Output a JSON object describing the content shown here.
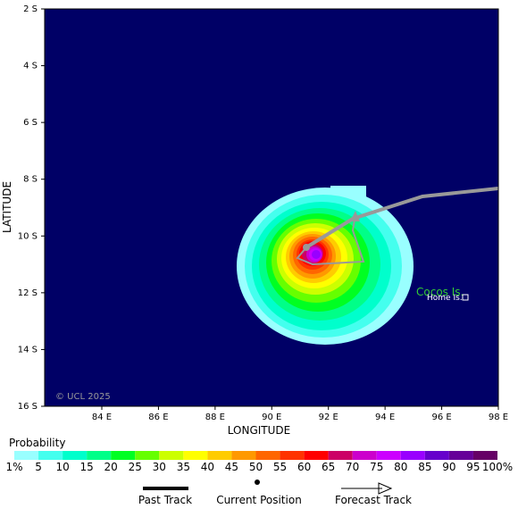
{
  "map": {
    "lat_ticks": [
      "2 S",
      "4 S",
      "6 S",
      "8 S",
      "10 S",
      "12 S",
      "14 S",
      "16 S"
    ],
    "lon_ticks": [
      "84 E",
      "86 E",
      "88 E",
      "90 E",
      "92 E",
      "94 E",
      "96 E",
      "98 E"
    ],
    "x_label": "LONGITUDE",
    "y_label": "LATITUDE",
    "credit": "© UCL 2025",
    "island": "Cocos Is.",
    "town": "Home Is."
  },
  "legend": {
    "title": "Probability",
    "labels": [
      "1%",
      "5",
      "10",
      "15",
      "20",
      "25",
      "30",
      "35",
      "40",
      "45",
      "50",
      "55",
      "60",
      "65",
      "70",
      "75",
      "80",
      "85",
      "90",
      "95",
      "100%"
    ],
    "colors": [
      "#99ffff",
      "#44ffee",
      "#00ffcc",
      "#00ff88",
      "#00ff22",
      "#66ff00",
      "#ccff00",
      "#ffff00",
      "#ffcc00",
      "#ff9900",
      "#ff6600",
      "#ff3300",
      "#ff0000",
      "#cc0066",
      "#cc00cc",
      "#cc00ff",
      "#9900ff",
      "#6600cc",
      "#660099",
      "#660066"
    ]
  },
  "track_legend": {
    "past": "Past Track",
    "current": "Current Position",
    "forecast": "Forecast Track"
  }
}
